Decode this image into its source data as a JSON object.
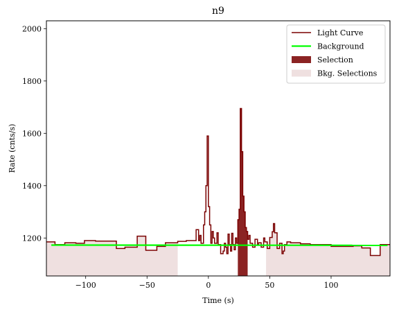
{
  "chart_data": {
    "type": "line",
    "title": "n9",
    "xlabel": "Time (s)",
    "ylabel": "Rate (cnts/s)",
    "xlim": [
      -132,
      148
    ],
    "ylim": [
      1055,
      2030
    ],
    "xticks": [
      -100,
      -50,
      0,
      50,
      100
    ],
    "xtick_labels": [
      "−100",
      "−50",
      "0",
      "50",
      "100"
    ],
    "yticks": [
      1200,
      1400,
      1600,
      1800,
      2000
    ],
    "ytick_labels": [
      "1200",
      "1400",
      "1600",
      "1800",
      "2000"
    ],
    "grid": false,
    "legend_position": "top-right",
    "legend": [
      {
        "label": "Light Curve",
        "kind": "line",
        "color": "#7a0000"
      },
      {
        "label": "Background",
        "kind": "line",
        "color": "#00ff00"
      },
      {
        "label": "Selection",
        "kind": "patch",
        "color": "#8b2323"
      },
      {
        "label": "Bkg. Selections",
        "kind": "patch",
        "color": "#efe0e0"
      }
    ],
    "colors": {
      "light_curve": "#7a0000",
      "background": "#00ff00",
      "selection": "#8b2323",
      "bkg_selection": "#efe0e0"
    },
    "bkg_selections": [
      [
        -132,
        -25
      ],
      [
        47,
        148
      ]
    ],
    "selection": [
      24,
      32
    ],
    "background": {
      "x": [
        -128,
        146
      ],
      "y": [
        1173,
        1172
      ]
    },
    "light_curve": {
      "x": [
        -132,
        -125,
        -117,
        -108,
        -101,
        -92,
        -75,
        -68,
        -58,
        -51,
        -42,
        -35,
        -25,
        -18,
        -10,
        -8,
        -7,
        -6,
        -4,
        -3,
        -2,
        -1,
        0,
        1,
        2,
        3,
        4,
        5,
        7,
        8,
        10,
        12,
        13,
        14,
        15,
        16,
        17,
        18,
        19,
        20,
        21,
        22,
        23,
        24,
        25,
        26,
        27,
        28,
        29,
        30,
        31,
        32,
        33,
        34,
        36,
        38,
        40,
        41,
        43,
        45,
        46,
        48,
        50,
        52,
        53,
        54,
        56,
        58,
        60,
        61,
        62,
        64,
        67,
        75,
        83,
        100,
        118,
        125,
        132,
        140,
        148
      ],
      "y": [
        1185,
        1175,
        1182,
        1180,
        1190,
        1188,
        1160,
        1165,
        1207,
        1153,
        1168,
        1182,
        1187,
        1190,
        1232,
        1190,
        1210,
        1180,
        1250,
        1300,
        1400,
        1590,
        1320,
        1250,
        1180,
        1225,
        1200,
        1180,
        1220,
        1175,
        1140,
        1150,
        1180,
        1165,
        1140,
        1215,
        1175,
        1150,
        1218,
        1175,
        1155,
        1200,
        1180,
        1270,
        1310,
        1695,
        1530,
        1360,
        1300,
        1240,
        1225,
        1195,
        1210,
        1180,
        1165,
        1195,
        1175,
        1182,
        1165,
        1200,
        1185,
        1160,
        1202,
        1224,
        1255,
        1220,
        1160,
        1180,
        1140,
        1150,
        1175,
        1185,
        1182,
        1178,
        1175,
        1168,
        1170,
        1162,
        1133,
        1175,
        1175
      ]
    }
  }
}
